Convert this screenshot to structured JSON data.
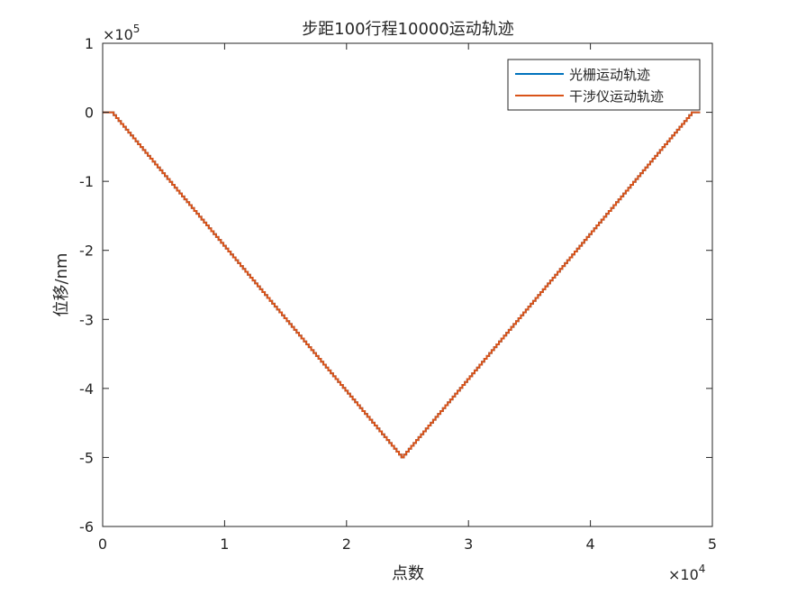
{
  "chart_data": {
    "type": "line",
    "title": "步距100行程10000运动轨迹",
    "xlabel": "点数",
    "ylabel": "位移/nm",
    "x_exponent_label": "×10",
    "x_exponent_power": "4",
    "y_exponent_label": "×10",
    "y_exponent_power": "5",
    "xlim": [
      0,
      5
    ],
    "ylim": [
      -6,
      1
    ],
    "x_ticks": [
      0,
      1,
      2,
      3,
      4,
      5
    ],
    "x_tick_labels": [
      "0",
      "1",
      "2",
      "3",
      "4",
      "5"
    ],
    "y_ticks": [
      1,
      0,
      -1,
      -2,
      -3,
      -4,
      -5,
      -6
    ],
    "y_tick_labels": [
      "1",
      "0",
      "-1",
      "-2",
      "-3",
      "-4",
      "-5",
      "-6"
    ],
    "grid": false,
    "legend_position": "top-right",
    "series": [
      {
        "name": "光栅运动轨迹",
        "color": "#0072BD",
        "x": [
          0,
          0.07,
          2.45,
          4.83,
          4.9
        ],
        "y": [
          0,
          0,
          -5,
          0,
          0
        ]
      },
      {
        "name": "干涉仪运动轨迹",
        "color": "#D95319",
        "x": [
          0,
          0.07,
          2.45,
          4.83,
          4.9
        ],
        "y": [
          0,
          0,
          -5,
          0,
          0
        ]
      }
    ]
  }
}
